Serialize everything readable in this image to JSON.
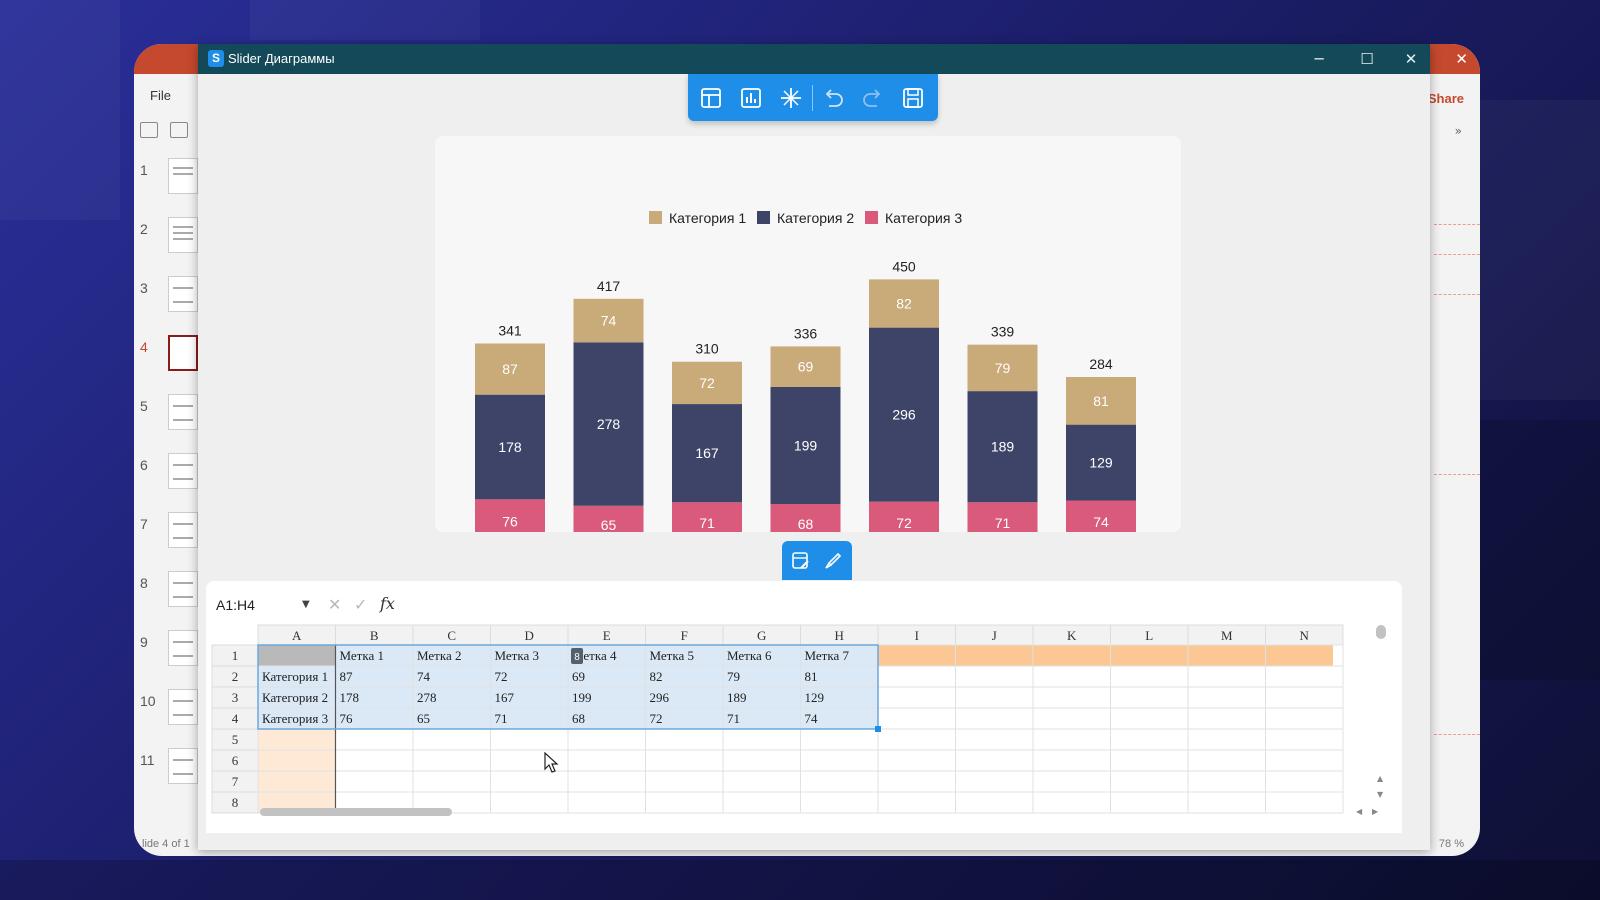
{
  "window": {
    "title": "Slider Диаграммы",
    "app_logo": "S"
  },
  "host_app": {
    "file_menu": "File",
    "share_label": "Share",
    "slide_status": "lide 4 of 1",
    "zoom": "78 %",
    "thumbnails": [
      "1",
      "2",
      "3",
      "4",
      "5",
      "6",
      "7",
      "8",
      "9",
      "10",
      "11"
    ],
    "active_thumbnail": 4
  },
  "toolbar_icons": [
    "table-layout-icon",
    "chart-type-icon",
    "sparkle-effects-icon",
    "undo-icon",
    "redo-icon",
    "save-icon"
  ],
  "mini_toolbar_icons": [
    "edit-data-icon",
    "brush-style-icon"
  ],
  "colors": {
    "cat1": "#c9aa79",
    "cat2": "#3d4468",
    "cat3": "#d95a7a",
    "accent": "#1e8ee8",
    "titlebar": "#134958",
    "selection": "#dbe9f6",
    "header_highlight": "#fbc894"
  },
  "chart_data": {
    "type": "bar",
    "stacked": true,
    "categories": [
      "Метка 1",
      "Метка 2",
      "Метка 3",
      "Метка 4",
      "Метка 5",
      "Метка 6",
      "Метка 7"
    ],
    "series": [
      {
        "name": "Категория 3",
        "values": [
          76,
          65,
          71,
          68,
          72,
          71,
          74
        ]
      },
      {
        "name": "Категория 2",
        "values": [
          178,
          278,
          167,
          199,
          296,
          189,
          129
        ]
      },
      {
        "name": "Категория 1",
        "values": [
          87,
          74,
          72,
          69,
          82,
          79,
          81
        ]
      }
    ],
    "totals": [
      341,
      417,
      310,
      336,
      450,
      339,
      284
    ],
    "legend_order": [
      "Категория 1",
      "Категория 2",
      "Категория 3"
    ],
    "legend_position": "top",
    "grid": false
  },
  "formula_bar": {
    "name_box": "A1:H4",
    "fx_label": "fx",
    "value": ""
  },
  "spreadsheet": {
    "columns": [
      "A",
      "B",
      "C",
      "D",
      "E",
      "F",
      "G",
      "H",
      "I",
      "J",
      "K",
      "L",
      "M",
      "N"
    ],
    "rows": [
      "1",
      "2",
      "3",
      "4",
      "5",
      "6",
      "7",
      "8"
    ],
    "cells": [
      [
        "",
        "Метка 1",
        "Метка 2",
        "Метка 3",
        "Метка 4",
        "Метка 5",
        "Метка 6",
        "Метка 7"
      ],
      [
        "Категория 1",
        "87",
        "74",
        "72",
        "69",
        "82",
        "79",
        "81"
      ],
      [
        "Категория 2",
        "178",
        "278",
        "167",
        "199",
        "296",
        "189",
        "129"
      ],
      [
        "Категория 3",
        "76",
        "65",
        "71",
        "68",
        "72",
        "71",
        "74"
      ]
    ],
    "selection": "A1:H4",
    "drag_badge": "8"
  }
}
